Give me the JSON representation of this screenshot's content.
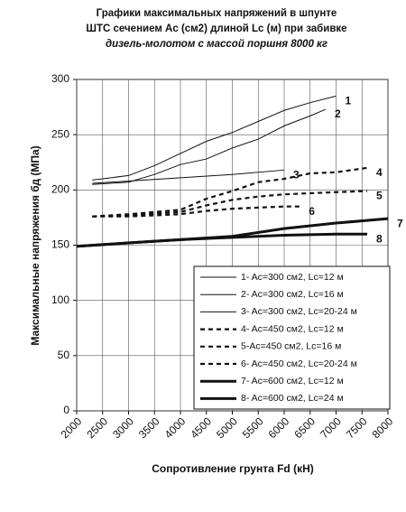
{
  "chart_data": {
    "type": "line",
    "title": [
      "Графики максимальных напряжений в шпунте",
      "ШТС сечением Ac (см2)  длиной Lc (м) при забивке",
      "дизель-молотом с массой поршня 8000 кг"
    ],
    "x_label": "Сопротивление грунта Fd (кН)",
    "y_label": "Максимальные напряжения бд  (МПа)",
    "xlim": [
      2000,
      8000
    ],
    "xticks": [
      2000,
      2500,
      3000,
      3500,
      4000,
      4500,
      5000,
      5500,
      6000,
      6500,
      7000,
      7500,
      8000
    ],
    "ylim": [
      0,
      300
    ],
    "yticks": [
      0,
      50,
      100,
      150,
      200,
      250,
      300
    ],
    "grid": true,
    "legend": "lower right",
    "series": [
      {
        "name": "1- Ac=300 см2, Lc=12 м",
        "end_label": "1",
        "style": "thin",
        "color": "#111111",
        "x": [
          2300,
          3000,
          3500,
          4000,
          4500,
          5000,
          5500,
          6000,
          6500,
          7000
        ],
        "values": [
          209,
          213,
          222,
          233,
          244,
          252,
          262,
          272,
          279,
          285
        ]
      },
      {
        "name": "2- Ac=300 см2, Lc=16 м",
        "end_label": "2",
        "style": "thin",
        "color": "#111111",
        "x": [
          2300,
          3000,
          3500,
          4000,
          4500,
          5000,
          5500,
          6000,
          6500,
          6800
        ],
        "values": [
          205,
          207,
          214,
          223,
          228,
          238,
          246,
          258,
          267,
          273
        ]
      },
      {
        "name": "3- Ac=300 см2, Lc=20-24 м",
        "end_label": "3",
        "style": "thin",
        "color": "#111111",
        "x": [
          2300,
          3000,
          4000,
          5000,
          6000
        ],
        "values": [
          206,
          208,
          211,
          214,
          218
        ]
      },
      {
        "name": "4- Ac=450 см2, Lc=12 м",
        "end_label": "4",
        "style": "dashed",
        "color": "#111111",
        "x": [
          2300,
          3000,
          4000,
          4500,
          5000,
          5500,
          6000,
          6500,
          7000,
          7600
        ],
        "values": [
          176,
          178,
          182,
          192,
          199,
          207,
          210,
          215,
          216,
          220
        ]
      },
      {
        "name": "5-Ac=450 см2, Lc=16 м",
        "end_label": "5",
        "style": "dashed",
        "color": "#111111",
        "x": [
          2300,
          3000,
          4000,
          4500,
          5000,
          5500,
          6000,
          6500,
          7000,
          7600
        ],
        "values": [
          176,
          177,
          180,
          186,
          191,
          194,
          196,
          197,
          198,
          199
        ]
      },
      {
        "name": "6- Ac=450 см2, Lc=20-24 м",
        "end_label": "6",
        "style": "dashed",
        "color": "#111111",
        "x": [
          2300,
          3000,
          4000,
          4500,
          5000,
          5500,
          6000,
          6300
        ],
        "values": [
          176,
          176,
          178,
          181,
          183,
          184,
          185,
          185
        ]
      },
      {
        "name": "7- Ac=600 см2, Lc=12 м",
        "end_label": "7",
        "style": "thick",
        "color": "#111111",
        "x": [
          2000,
          3000,
          4000,
          5000,
          6000,
          7000,
          8000
        ],
        "values": [
          149,
          152,
          155,
          158,
          165,
          170,
          174
        ]
      },
      {
        "name": "8- Ac=600 см2, Lc=24 м",
        "end_label": "8",
        "style": "thick",
        "color": "#111111",
        "x": [
          2000,
          3000,
          4000,
          5000,
          6000,
          7000,
          7600
        ],
        "values": [
          149,
          152,
          155,
          157,
          159,
          160,
          160
        ]
      }
    ]
  }
}
